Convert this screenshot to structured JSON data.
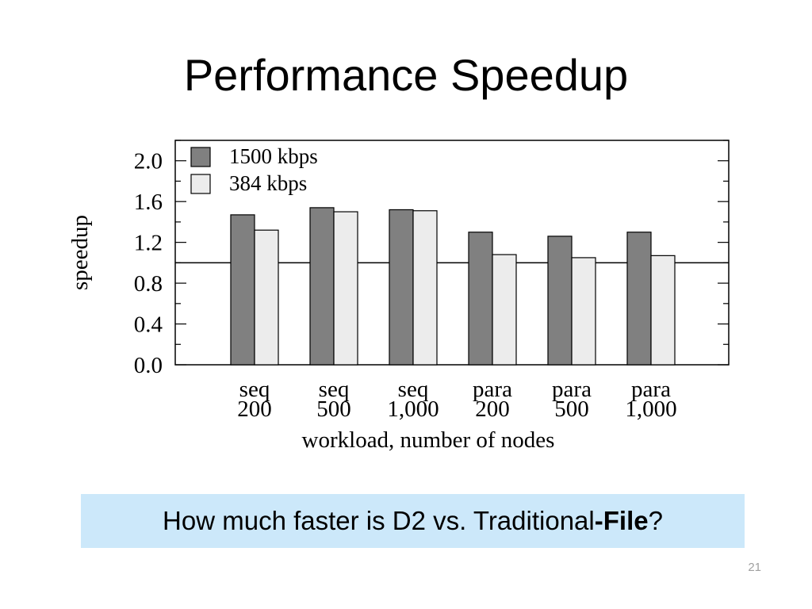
{
  "slide": {
    "title": "Performance Speedup",
    "callout": {
      "prefix": "How much faster is D2 vs. Traditional",
      "bold": "-File",
      "suffix": "?"
    },
    "slide_number": "21"
  },
  "chart_data": {
    "type": "bar",
    "categories": [
      [
        "seq",
        "200"
      ],
      [
        "seq",
        "500"
      ],
      [
        "seq",
        "1,000"
      ],
      [
        "para",
        "200"
      ],
      [
        "para",
        "500"
      ],
      [
        "para",
        "1,000"
      ]
    ],
    "series": [
      {
        "name": "1500 kbps",
        "color": "#808080",
        "values": [
          1.47,
          1.54,
          1.52,
          1.3,
          1.26,
          1.3
        ]
      },
      {
        "name": "384 kbps",
        "color": "#ececec",
        "values": [
          1.32,
          1.5,
          1.51,
          1.08,
          1.05,
          1.07
        ]
      }
    ],
    "xlabel": "workload, number of nodes",
    "ylabel": "speedup",
    "ylim": [
      0,
      2.2
    ],
    "yticks": [
      "0.0",
      "0.4",
      "0.8",
      "1.2",
      "1.6",
      "2.0"
    ],
    "ytick_values": [
      0,
      0.4,
      0.8,
      1.2,
      1.6,
      2.0
    ],
    "minor_tick_step": 0.2,
    "reference_line": 1.0,
    "legend_position": "top-left"
  }
}
